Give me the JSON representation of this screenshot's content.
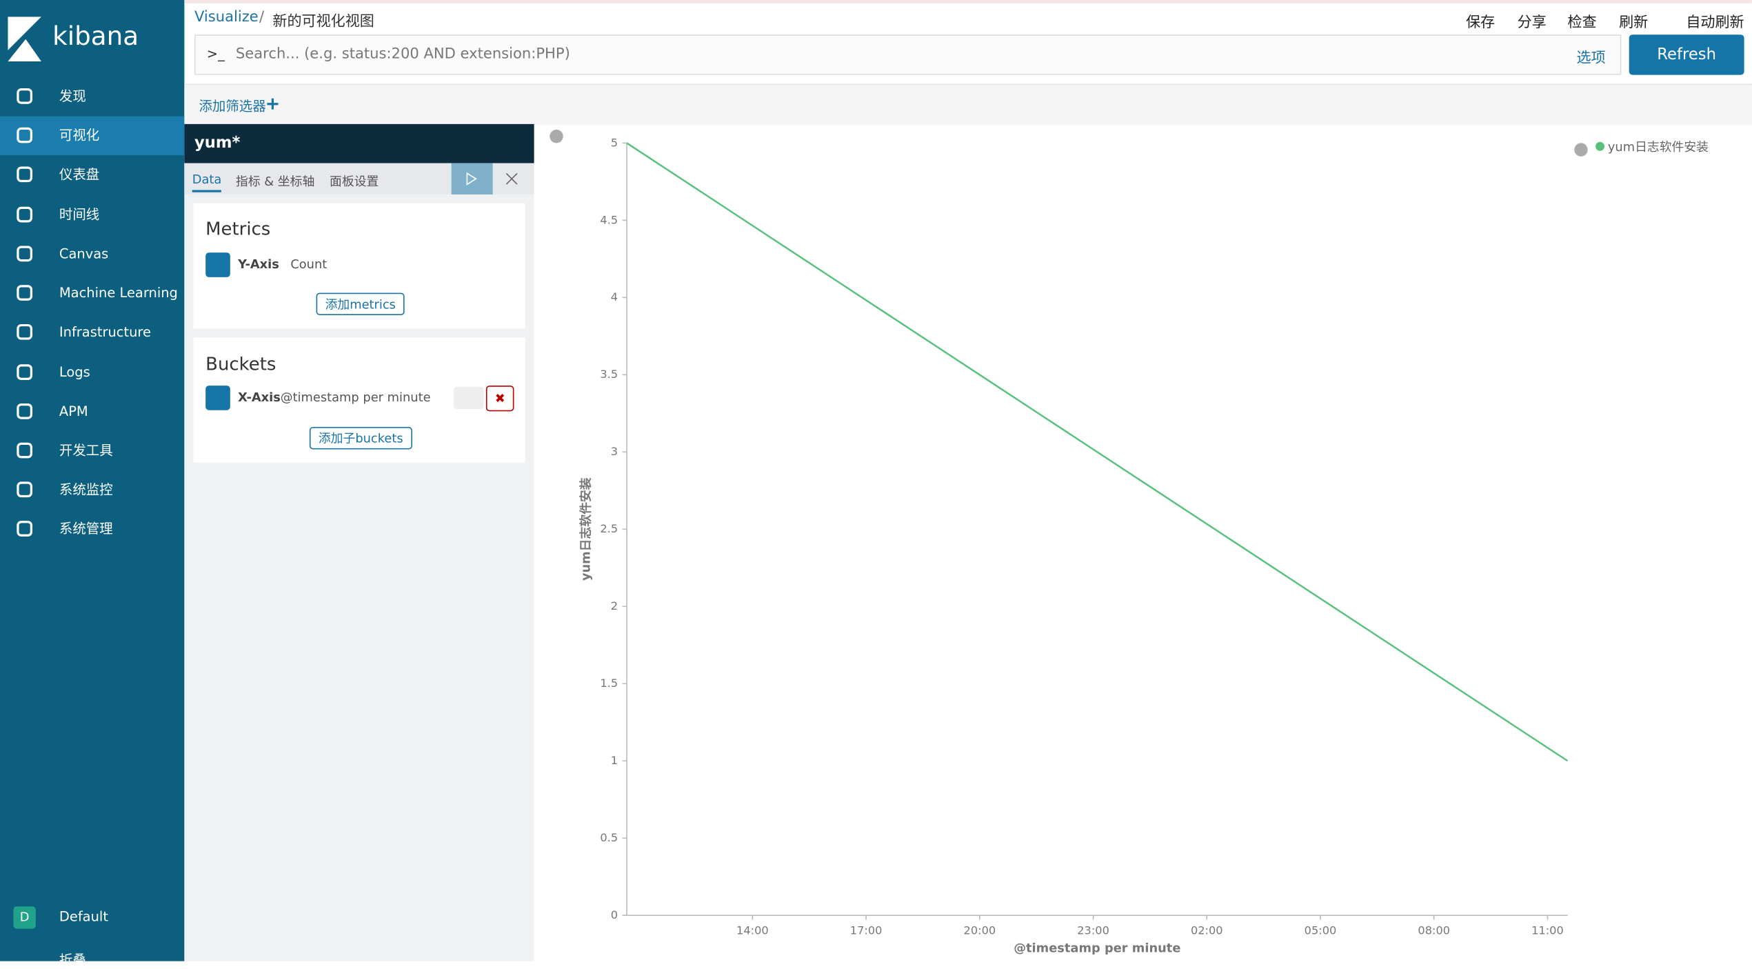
{
  "app": {
    "logo": "kibana",
    "nav": [
      "发现",
      "可视化",
      "仪表盘",
      "时间线",
      "Canvas",
      "Machine Learning",
      "Infrastructure",
      "Logs",
      "APM",
      "开发工具",
      "系统监控",
      "系统管理"
    ],
    "space_badge": "D",
    "space": "Default",
    "collapse": "折叠"
  },
  "header": {
    "breadcrumb": "Visualize",
    "separator": "/",
    "page": "新的可视化视图",
    "actions": [
      "保存",
      "分享",
      "检查",
      "刷新",
      "自动刷新"
    ],
    "search_placeholder": "Search... (e.g. status:200 AND extension:PHP)",
    "options": "选项",
    "refresh": "Refresh",
    "add_filter": "添加筛选器"
  },
  "editor": {
    "index": "yum*",
    "tabs": [
      "Data",
      "指标 & 坐标轴",
      "面板设置"
    ],
    "metrics_title": "Metrics",
    "metric_axis": "Y-Axis",
    "metric_agg": "Count",
    "add_metrics": "添加metrics",
    "buckets_title": "Buckets",
    "bucket_axis": "X-Axis",
    "bucket_agg": "@timestamp per minute",
    "add_buckets": "添加子buckets"
  },
  "chart_data": {
    "type": "line",
    "x_label": "@timestamp per minute",
    "y_label": "yum日志软件安装",
    "x": [
      10.68,
      35.53
    ],
    "series": [
      {
        "name": "yum日志软件安装",
        "color": "#57c17b",
        "values": [
          5,
          1
        ]
      }
    ],
    "xlim": [
      10.68,
      35.53
    ],
    "xticks": [
      {
        "value": 14,
        "label": "14:00"
      },
      {
        "value": 17,
        "label": "17:00"
      },
      {
        "value": 20,
        "label": "20:00"
      },
      {
        "value": 23,
        "label": "23:00"
      },
      {
        "value": 26,
        "label": "02:00"
      },
      {
        "value": 29,
        "label": "05:00"
      },
      {
        "value": 32,
        "label": "08:00"
      },
      {
        "value": 35,
        "label": "11:00"
      }
    ],
    "ylim": [
      0,
      5
    ],
    "yticks": [
      0,
      0.5,
      1,
      1.5,
      2,
      2.5,
      3,
      3.5,
      4,
      4.5,
      5
    ],
    "legend": "top-right"
  }
}
